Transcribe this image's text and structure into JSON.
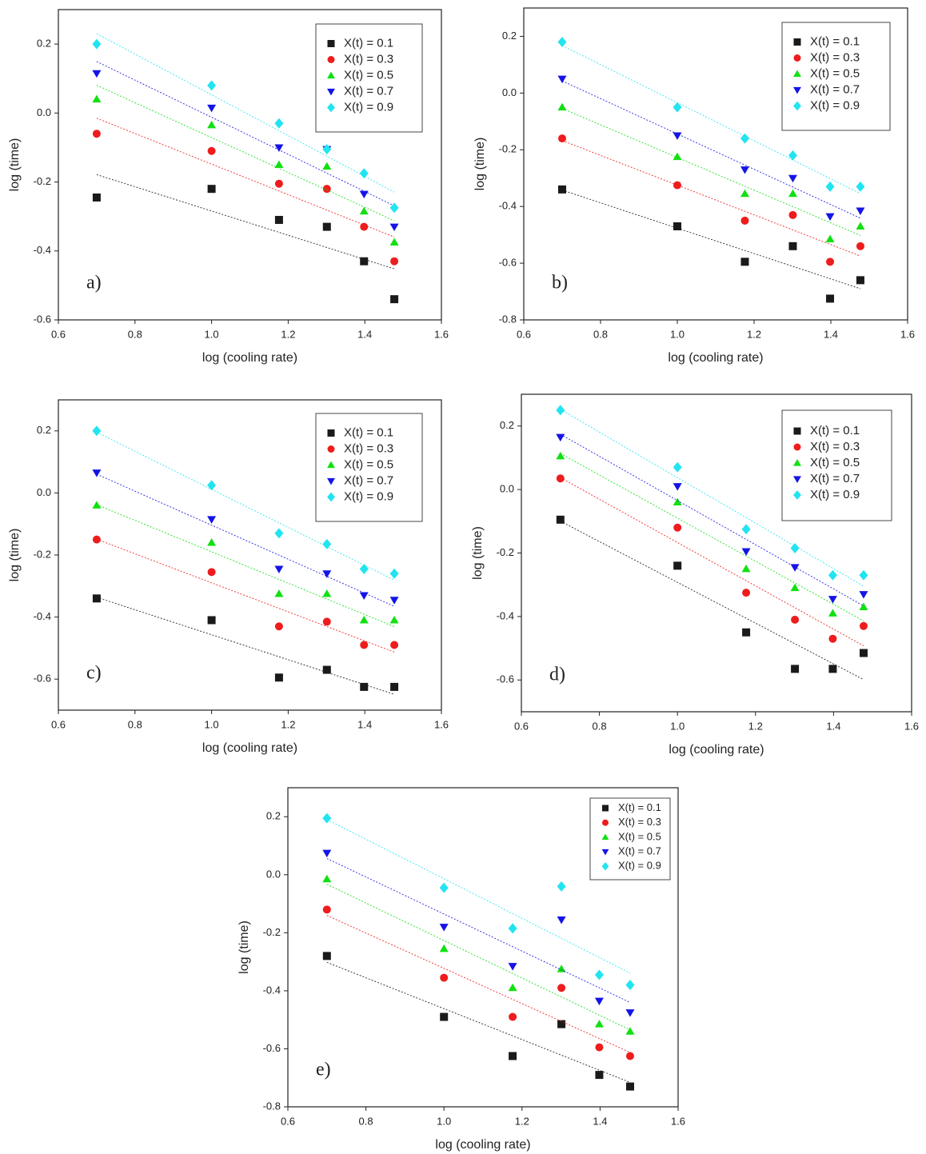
{
  "chart_data": [
    {
      "type": "scatter",
      "label": "a)",
      "xlabel": "log (cooling rate)",
      "ylabel": "log (time)",
      "x": [
        0.7,
        1.0,
        1.176,
        1.301,
        1.398,
        1.477
      ],
      "xlim": [
        0.6,
        1.6
      ],
      "xticks": [
        0.6,
        0.8,
        {
          "value": 1,
          "label": "1.0"
        },
        1.2,
        1.4,
        1.6
      ],
      "ylim": [
        -0.6,
        0.3
      ],
      "yticks": [
        -0.6,
        -0.4,
        -0.2,
        {
          "value": 0,
          "label": "0.0"
        },
        0.2
      ],
      "trendline": "linear",
      "legend": "upper right",
      "series": [
        {
          "name": "X(t) = 0.1",
          "color": "#1a1a1a",
          "marker": "square",
          "values": [
            -0.245,
            -0.22,
            -0.31,
            -0.33,
            -0.43,
            -0.54
          ]
        },
        {
          "name": "X(t) = 0.3",
          "color": "#ee1c1c",
          "marker": "circle",
          "values": [
            -0.06,
            -0.11,
            -0.205,
            -0.22,
            -0.33,
            -0.43
          ]
        },
        {
          "name": "X(t) = 0.5",
          "color": "#12e012",
          "marker": "triangle-up",
          "values": [
            0.04,
            -0.035,
            -0.15,
            -0.155,
            -0.285,
            -0.375
          ]
        },
        {
          "name": "X(t) = 0.7",
          "color": "#1414e6",
          "marker": "triangle-down",
          "values": [
            0.115,
            0.015,
            -0.1,
            -0.105,
            -0.235,
            -0.33
          ]
        },
        {
          "name": "X(t) = 0.9",
          "color": "#22e4f0",
          "marker": "diamond",
          "values": [
            0.2,
            0.08,
            -0.03,
            -0.105,
            -0.175,
            -0.275
          ]
        }
      ]
    },
    {
      "type": "scatter",
      "label": "b)",
      "xlabel": "log (cooling rate)",
      "ylabel": "log (time)",
      "x": [
        0.7,
        1.0,
        1.176,
        1.301,
        1.398,
        1.477
      ],
      "xlim": [
        0.6,
        1.6
      ],
      "xticks": [
        0.6,
        0.8,
        {
          "value": 1,
          "label": "1.0"
        },
        1.2,
        1.4,
        1.6
      ],
      "ylim": [
        -0.8,
        0.3
      ],
      "yticks": [
        -0.8,
        -0.6,
        -0.4,
        -0.2,
        {
          "value": 0,
          "label": "0.0"
        },
        0.2
      ],
      "trendline": "linear",
      "legend": "upper right",
      "series": [
        {
          "name": "X(t) = 0.1",
          "color": "#1a1a1a",
          "marker": "square",
          "values": [
            -0.34,
            -0.47,
            -0.595,
            -0.54,
            -0.725,
            -0.66
          ]
        },
        {
          "name": "X(t) = 0.3",
          "color": "#ee1c1c",
          "marker": "circle",
          "values": [
            -0.16,
            -0.325,
            -0.45,
            -0.43,
            -0.595,
            -0.54
          ]
        },
        {
          "name": "X(t) = 0.5",
          "color": "#12e012",
          "marker": "triangle-up",
          "values": [
            -0.05,
            -0.225,
            -0.355,
            -0.355,
            -0.515,
            -0.47
          ]
        },
        {
          "name": "X(t) = 0.7",
          "color": "#1414e6",
          "marker": "triangle-down",
          "values": [
            0.05,
            -0.15,
            -0.27,
            -0.3,
            -0.435,
            -0.415
          ]
        },
        {
          "name": "X(t) = 0.9",
          "color": "#22e4f0",
          "marker": "diamond",
          "values": [
            0.18,
            -0.05,
            -0.16,
            -0.22,
            -0.33,
            -0.33
          ]
        }
      ]
    },
    {
      "type": "scatter",
      "label": "c)",
      "xlabel": "log (cooling rate)",
      "ylabel": "log (time)",
      "x": [
        0.7,
        1.0,
        1.176,
        1.301,
        1.398,
        1.477
      ],
      "xlim": [
        0.6,
        1.6
      ],
      "xticks": [
        0.6,
        0.8,
        {
          "value": 1,
          "label": "1.0"
        },
        1.2,
        1.4,
        1.6
      ],
      "ylim": [
        -0.7,
        0.3
      ],
      "yticks": [
        -0.6,
        -0.4,
        -0.2,
        {
          "value": 0,
          "label": "0.0"
        },
        0.2
      ],
      "trendline": "linear",
      "legend": "upper right",
      "series": [
        {
          "name": "X(t) = 0.1",
          "color": "#1a1a1a",
          "marker": "square",
          "values": [
            -0.34,
            -0.41,
            -0.595,
            -0.57,
            -0.625,
            -0.625
          ]
        },
        {
          "name": "X(t) = 0.3",
          "color": "#ee1c1c",
          "marker": "circle",
          "values": [
            -0.15,
            -0.255,
            -0.43,
            -0.415,
            -0.49,
            -0.49
          ]
        },
        {
          "name": "X(t) = 0.5",
          "color": "#12e012",
          "marker": "triangle-up",
          "values": [
            -0.04,
            -0.16,
            -0.325,
            -0.325,
            -0.41,
            -0.41
          ]
        },
        {
          "name": "X(t) = 0.7",
          "color": "#1414e6",
          "marker": "triangle-down",
          "values": [
            0.065,
            -0.085,
            -0.245,
            -0.26,
            -0.33,
            -0.345
          ]
        },
        {
          "name": "X(t) = 0.9",
          "color": "#22e4f0",
          "marker": "diamond",
          "values": [
            0.2,
            0.025,
            -0.13,
            -0.165,
            -0.245,
            -0.26
          ]
        }
      ]
    },
    {
      "type": "scatter",
      "label": "d)",
      "xlabel": "log (cooling rate)",
      "ylabel": "log (time)",
      "x": [
        0.7,
        1.0,
        1.176,
        1.301,
        1.398,
        1.477
      ],
      "xlim": [
        0.6,
        1.6
      ],
      "xticks": [
        0.6,
        0.8,
        {
          "value": 1,
          "label": "1.0"
        },
        1.2,
        1.4,
        1.6
      ],
      "ylim": [
        -0.7,
        0.3
      ],
      "yticks": [
        -0.6,
        -0.4,
        -0.2,
        {
          "value": 0,
          "label": "0.0"
        },
        0.2
      ],
      "trendline": "linear",
      "legend": "upper right",
      "series": [
        {
          "name": "X(t) = 0.1",
          "color": "#1a1a1a",
          "marker": "square",
          "values": [
            -0.095,
            -0.24,
            -0.45,
            -0.565,
            -0.565,
            -0.515
          ]
        },
        {
          "name": "X(t) = 0.3",
          "color": "#ee1c1c",
          "marker": "circle",
          "values": [
            0.035,
            -0.12,
            -0.325,
            -0.41,
            -0.47,
            -0.43
          ]
        },
        {
          "name": "X(t) = 0.5",
          "color": "#12e012",
          "marker": "triangle-up",
          "values": [
            0.105,
            -0.04,
            -0.25,
            -0.31,
            -0.39,
            -0.37
          ]
        },
        {
          "name": "X(t) = 0.7",
          "color": "#1414e6",
          "marker": "triangle-down",
          "values": [
            0.165,
            0.01,
            -0.195,
            -0.245,
            -0.345,
            -0.33
          ]
        },
        {
          "name": "X(t) = 0.9",
          "color": "#22e4f0",
          "marker": "diamond",
          "values": [
            0.25,
            0.07,
            -0.125,
            -0.185,
            -0.27,
            -0.27
          ]
        }
      ]
    },
    {
      "type": "scatter",
      "label": "e)",
      "xlabel": "log (cooling rate)",
      "ylabel": "log (time)",
      "x": [
        0.7,
        1.0,
        1.176,
        1.301,
        1.398,
        1.477
      ],
      "xlim": [
        0.6,
        1.6
      ],
      "xticks": [
        0.6,
        0.8,
        {
          "value": 1,
          "label": "1.0"
        },
        1.2,
        1.4,
        1.6
      ],
      "ylim": [
        -0.8,
        0.3
      ],
      "yticks": [
        -0.8,
        -0.6,
        -0.4,
        -0.2,
        {
          "value": 0,
          "label": "0.0"
        },
        0.2
      ],
      "trendline": "linear",
      "legend": "upper right",
      "series": [
        {
          "name": "X(t) = 0.1",
          "color": "#1a1a1a",
          "marker": "square",
          "values": [
            -0.28,
            -0.49,
            -0.625,
            -0.515,
            -0.69,
            -0.73
          ]
        },
        {
          "name": "X(t) = 0.3",
          "color": "#ee1c1c",
          "marker": "circle",
          "values": [
            -0.12,
            -0.355,
            -0.49,
            -0.39,
            -0.595,
            -0.625
          ]
        },
        {
          "name": "X(t) = 0.5",
          "color": "#12e012",
          "marker": "triangle-up",
          "values": [
            -0.015,
            -0.255,
            -0.39,
            -0.325,
            -0.515,
            -0.54
          ]
        },
        {
          "name": "X(t) = 0.7",
          "color": "#1414e6",
          "marker": "triangle-down",
          "values": [
            0.075,
            -0.18,
            -0.315,
            -0.155,
            -0.435,
            -0.475
          ]
        },
        {
          "name": "X(t) = 0.9",
          "color": "#22e4f0",
          "marker": "diamond",
          "values": [
            0.195,
            -0.045,
            -0.185,
            -0.04,
            -0.345,
            -0.38
          ]
        }
      ]
    }
  ]
}
